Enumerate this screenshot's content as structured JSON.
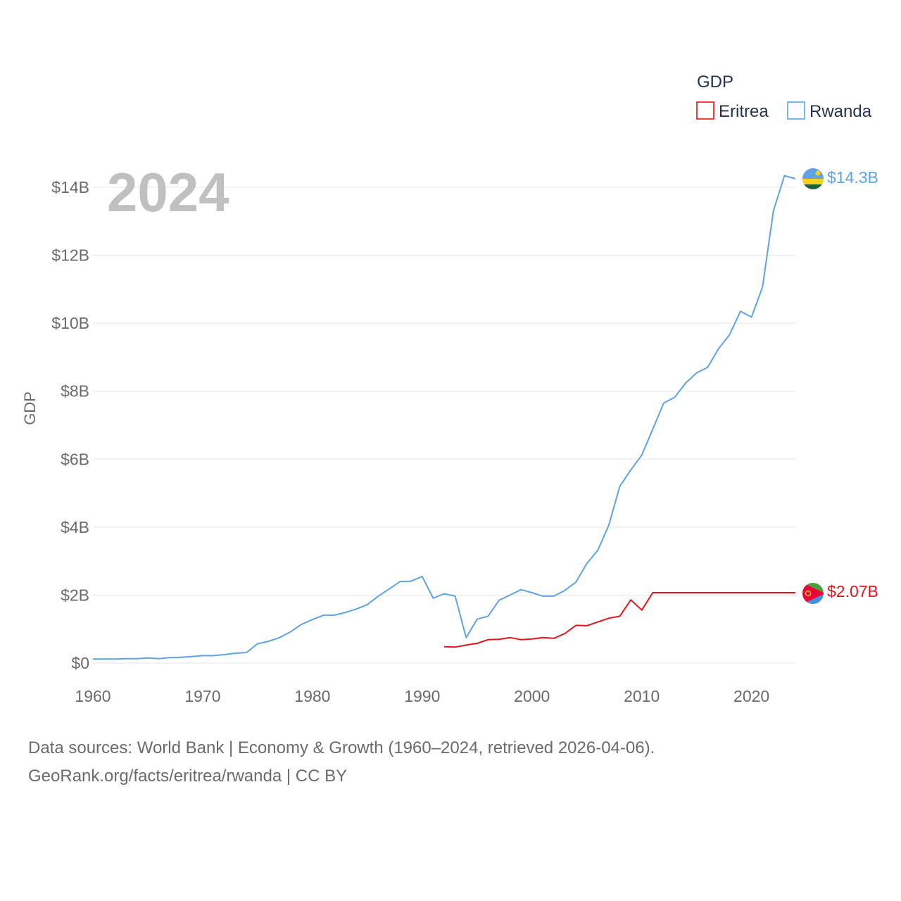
{
  "chart_data": {
    "type": "line",
    "title": "",
    "year_watermark": "2024",
    "xlabel": "",
    "ylabel": "GDP",
    "xlim": [
      1960,
      2024
    ],
    "ylim": [
      0,
      14.3
    ],
    "x_ticks": [
      1960,
      1970,
      1980,
      1990,
      2000,
      2010,
      2020
    ],
    "x_tick_labels": [
      "1960",
      "1970",
      "1980",
      "1990",
      "2000",
      "2010",
      "2020"
    ],
    "y_ticks": [
      0,
      2,
      4,
      6,
      8,
      10,
      12,
      14
    ],
    "y_tick_labels": [
      "$0",
      "$2B",
      "$4B",
      "$6B",
      "$8B",
      "$10B",
      "$12B",
      "$14B"
    ],
    "legend": {
      "title": "GDP",
      "position": "top-right",
      "entries": [
        "Eritrea",
        "Rwanda"
      ]
    },
    "series": [
      {
        "name": "Eritrea",
        "color": "#e8141c",
        "end_label": "$2.07B",
        "x": [
          1992,
          1993,
          1994,
          1995,
          1996,
          1997,
          1998,
          1999,
          2000,
          2001,
          2002,
          2003,
          2004,
          2005,
          2006,
          2007,
          2008,
          2009,
          2010,
          2011,
          2024
        ],
        "values": [
          0.48,
          0.47,
          0.53,
          0.58,
          0.69,
          0.7,
          0.75,
          0.69,
          0.71,
          0.75,
          0.73,
          0.87,
          1.11,
          1.1,
          1.21,
          1.32,
          1.38,
          1.86,
          1.56,
          2.07,
          2.07
        ]
      },
      {
        "name": "Rwanda",
        "color": "#5ea3e3",
        "end_label": "$14.3B",
        "x": [
          1960,
          1961,
          1962,
          1963,
          1964,
          1965,
          1966,
          1967,
          1968,
          1969,
          1970,
          1971,
          1972,
          1973,
          1974,
          1975,
          1976,
          1977,
          1978,
          1979,
          1980,
          1981,
          1982,
          1983,
          1984,
          1985,
          1986,
          1987,
          1988,
          1989,
          1990,
          1991,
          1992,
          1993,
          1994,
          1995,
          1996,
          1997,
          1998,
          1999,
          2000,
          2001,
          2002,
          2003,
          2004,
          2005,
          2006,
          2007,
          2008,
          2009,
          2010,
          2011,
          2012,
          2013,
          2014,
          2015,
          2016,
          2017,
          2018,
          2019,
          2020,
          2021,
          2022,
          2023,
          2024
        ],
        "values": [
          0.12,
          0.12,
          0.12,
          0.13,
          0.13,
          0.15,
          0.13,
          0.16,
          0.17,
          0.19,
          0.22,
          0.22,
          0.25,
          0.29,
          0.31,
          0.57,
          0.64,
          0.75,
          0.92,
          1.14,
          1.28,
          1.41,
          1.41,
          1.49,
          1.59,
          1.72,
          1.97,
          2.18,
          2.4,
          2.41,
          2.55,
          1.91,
          2.04,
          1.97,
          0.75,
          1.29,
          1.38,
          1.85,
          2.0,
          2.16,
          2.07,
          1.97,
          1.97,
          2.14,
          2.38,
          2.93,
          3.32,
          4.06,
          5.2,
          5.68,
          6.12,
          6.88,
          7.65,
          7.82,
          8.24,
          8.54,
          8.7,
          9.25,
          9.66,
          10.35,
          10.18,
          11.06,
          13.31,
          14.34,
          14.25
        ]
      }
    ]
  },
  "footer": {
    "line1": "Data sources: World Bank | Economy & Growth (1960–2024, retrieved 2026-04-06).",
    "line2": "GeoRank.org/facts/eritrea/rwanda | CC BY"
  }
}
